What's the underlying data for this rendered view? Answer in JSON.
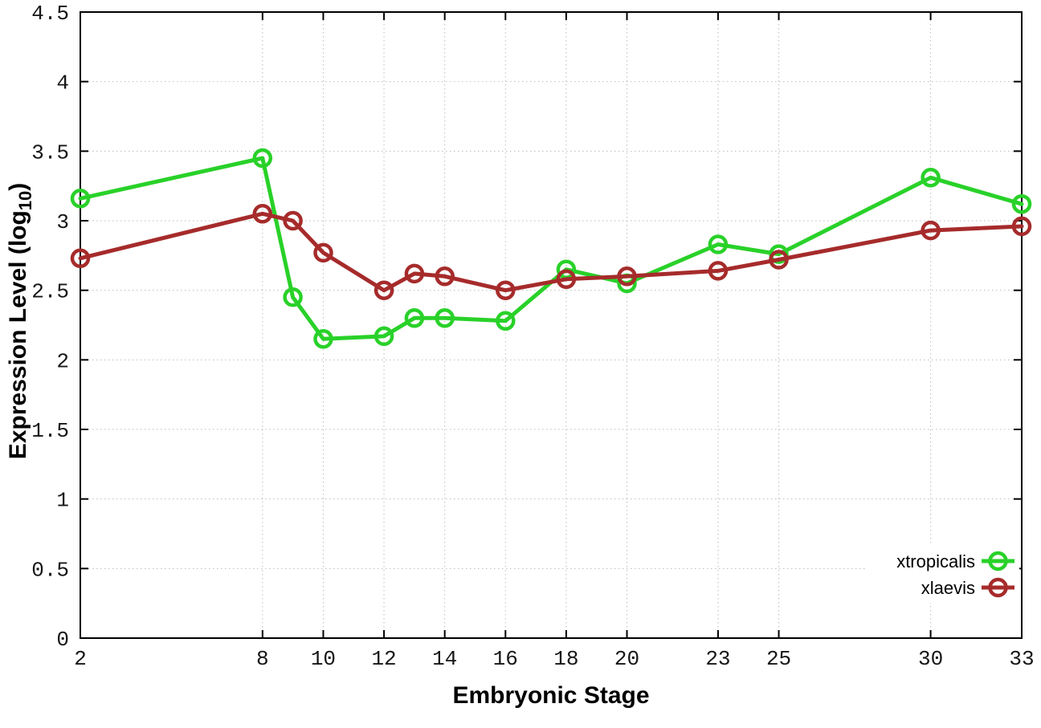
{
  "figure": {
    "background": "#ffffff",
    "border_color": "#000000",
    "grid_color": "#bcbcbc",
    "tick_color": "#000000"
  },
  "chart_data": {
    "type": "line",
    "title": "",
    "xlabel": "Embryonic Stage",
    "ylabel": "Expression Level (log10)",
    "ylabel_parts": {
      "prefix": "Expression Level (log",
      "subscript": "10",
      "suffix": ")"
    },
    "xlim": [
      2,
      33
    ],
    "ylim": [
      0,
      4.5
    ],
    "xticks": [
      2,
      8,
      10,
      12,
      14,
      16,
      18,
      20,
      23,
      25,
      30,
      33
    ],
    "ytick_step": 0.5,
    "ytick_labels": [
      "0",
      "0.5",
      "1",
      "1.5",
      "2",
      "2.5",
      "3",
      "3.5",
      "4",
      "4.5"
    ],
    "grid": true,
    "legend_position": "bottom-right",
    "x": [
      2,
      8,
      9,
      10,
      12,
      13,
      14,
      16,
      18,
      20,
      23,
      25,
      30,
      33
    ],
    "series": [
      {
        "name": "xtropicalis",
        "color": "#29d129",
        "values": [
          3.16,
          3.45,
          2.45,
          2.15,
          2.17,
          2.3,
          2.3,
          2.28,
          2.65,
          2.55,
          2.83,
          2.76,
          3.31,
          3.12
        ]
      },
      {
        "name": "xlaevis",
        "color": "#a62b2b",
        "values": [
          2.73,
          3.05,
          3.0,
          2.77,
          2.5,
          2.62,
          2.6,
          2.5,
          2.58,
          2.6,
          2.64,
          2.72,
          2.93,
          2.96
        ]
      }
    ]
  }
}
